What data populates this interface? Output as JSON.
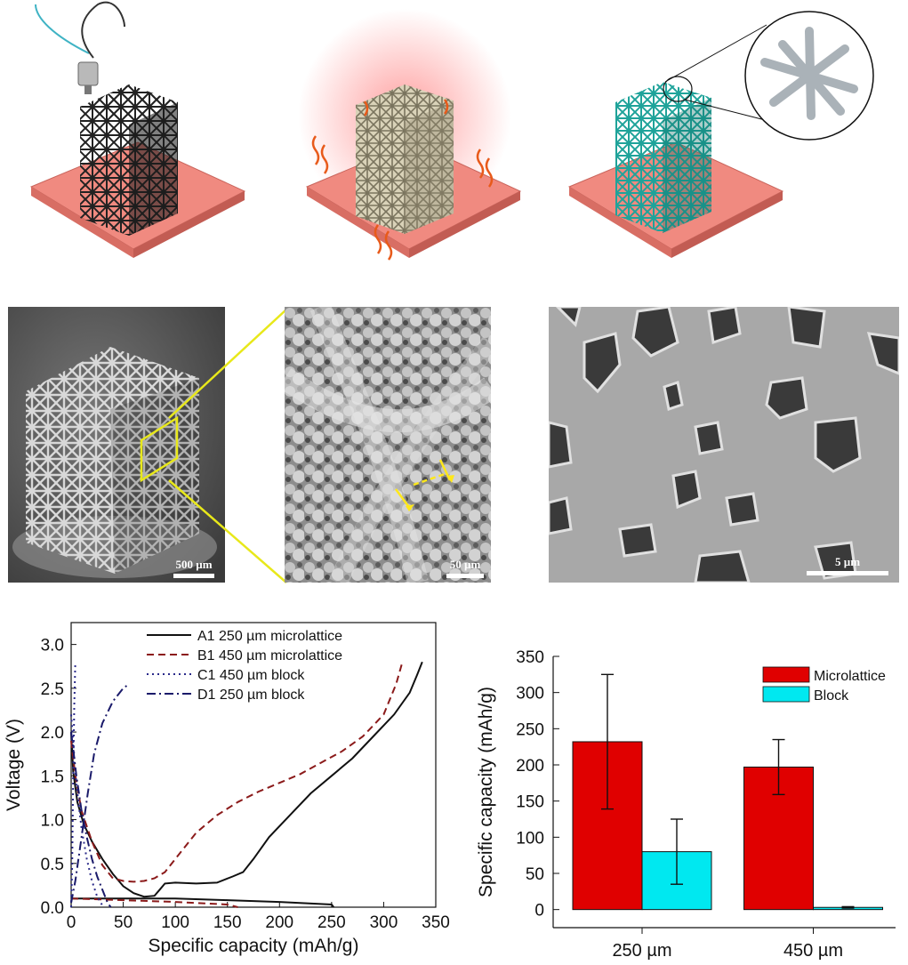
{
  "sem_images": {
    "scale_bar_1": "500 µm",
    "scale_bar_2": "50 µm",
    "scale_bar_3": "5 µm"
  },
  "illustration_colors": {
    "substrate": "#f08a80",
    "lattice_dark": "#2a2a2a",
    "lattice_beige": "#c9c2a8",
    "lattice_teal": "#1fa39a",
    "callout_strut": "#aab2b8",
    "zoom_line": "#e8e81a"
  },
  "chart_data": [
    {
      "type": "line",
      "xlabel": "Specific capacity (mAh/g)",
      "ylabel": "Voltage (V)",
      "xlim": [
        0,
        350
      ],
      "ylim": [
        0,
        3.25
      ],
      "x_ticks": [
        "0",
        "50",
        "100",
        "150",
        "200",
        "250",
        "300",
        "350"
      ],
      "y_ticks": [
        "0.0",
        "0.5",
        "1.0",
        "1.5",
        "2.0",
        "2.5",
        "3.0"
      ],
      "legend_position": "top-center",
      "series": [
        {
          "name": "A1 250 µm microlattice",
          "color": "#111111",
          "dash": "solid",
          "points": [
            [
              0,
              2.0
            ],
            [
              2,
              1.55
            ],
            [
              6,
              1.2
            ],
            [
              12,
              0.95
            ],
            [
              20,
              0.75
            ],
            [
              30,
              0.55
            ],
            [
              40,
              0.38
            ],
            [
              50,
              0.24
            ],
            [
              60,
              0.16
            ],
            [
              70,
              0.12
            ],
            [
              80,
              0.13
            ],
            [
              85,
              0.2
            ],
            [
              90,
              0.27
            ],
            [
              100,
              0.28
            ],
            [
              120,
              0.27
            ],
            [
              140,
              0.28
            ],
            [
              155,
              0.35
            ],
            [
              165,
              0.4
            ],
            [
              175,
              0.55
            ],
            [
              190,
              0.8
            ],
            [
              210,
              1.05
            ],
            [
              230,
              1.3
            ],
            [
              250,
              1.5
            ],
            [
              270,
              1.7
            ],
            [
              290,
              1.95
            ],
            [
              310,
              2.2
            ],
            [
              325,
              2.45
            ],
            [
              332,
              2.65
            ],
            [
              337,
              2.8
            ]
          ],
          "points_discharge": [
            [
              0,
              0.1
            ],
            [
              50,
              0.1
            ],
            [
              100,
              0.1
            ],
            [
              150,
              0.08
            ],
            [
              200,
              0.06
            ],
            [
              250,
              0.03
            ],
            [
              252,
              0.0
            ]
          ]
        },
        {
          "name": "B1 450 µm microlattice",
          "color": "#8b1a1a",
          "dash": "dashed",
          "points": [
            [
              0,
              1.9
            ],
            [
              4,
              1.5
            ],
            [
              10,
              1.1
            ],
            [
              20,
              0.75
            ],
            [
              30,
              0.48
            ],
            [
              40,
              0.33
            ],
            [
              50,
              0.3
            ],
            [
              60,
              0.29
            ],
            [
              70,
              0.3
            ],
            [
              80,
              0.33
            ],
            [
              90,
              0.4
            ],
            [
              100,
              0.55
            ],
            [
              120,
              0.85
            ],
            [
              140,
              1.05
            ],
            [
              160,
              1.2
            ],
            [
              180,
              1.32
            ],
            [
              200,
              1.42
            ],
            [
              220,
              1.52
            ],
            [
              240,
              1.65
            ],
            [
              260,
              1.78
            ],
            [
              280,
              1.95
            ],
            [
              300,
              2.2
            ],
            [
              312,
              2.55
            ],
            [
              318,
              2.8
            ]
          ],
          "points_discharge": [
            [
              0,
              0.1
            ],
            [
              50,
              0.08
            ],
            [
              100,
              0.06
            ],
            [
              150,
              0.03
            ],
            [
              160,
              0.0
            ]
          ]
        },
        {
          "name": "C1 450 µm block",
          "color": "#2a2a8a",
          "dash": "dotted",
          "points": [
            [
              0,
              0.0
            ],
            [
              1,
              0.5
            ],
            [
              2,
              1.5
            ],
            [
              3,
              2.3
            ],
            [
              4,
              2.8
            ]
          ],
          "points_discharge": [
            [
              0,
              2.2
            ],
            [
              5,
              1.4
            ],
            [
              10,
              0.9
            ],
            [
              15,
              0.55
            ],
            [
              20,
              0.3
            ],
            [
              25,
              0.12
            ],
            [
              30,
              0.02
            ]
          ]
        },
        {
          "name": "D1 250 µm block",
          "color": "#1a1a6a",
          "dash": "dashdot",
          "points": [
            [
              0,
              0.05
            ],
            [
              4,
              0.3
            ],
            [
              10,
              0.8
            ],
            [
              16,
              1.3
            ],
            [
              22,
              1.75
            ],
            [
              30,
              2.1
            ],
            [
              40,
              2.35
            ],
            [
              50,
              2.5
            ],
            [
              56,
              2.55
            ]
          ],
          "points_discharge": [
            [
              0,
              2.0
            ],
            [
              5,
              1.5
            ],
            [
              10,
              1.1
            ],
            [
              15,
              0.8
            ],
            [
              20,
              0.55
            ],
            [
              25,
              0.35
            ],
            [
              30,
              0.2
            ],
            [
              35,
              0.05
            ],
            [
              38,
              0.0
            ]
          ]
        }
      ]
    },
    {
      "type": "bar",
      "ylabel": "Specific capacity (mAh/g)",
      "xlabel": "",
      "ylim": [
        -25,
        350
      ],
      "y_ticks": [
        "0",
        "50",
        "100",
        "150",
        "200",
        "250",
        "300",
        "350"
      ],
      "categories": [
        "250 µm",
        "450 µm"
      ],
      "legend_position": "top-right",
      "series": [
        {
          "name": "Microlattice",
          "color": "#e00000",
          "values": [
            232,
            197
          ],
          "errors": [
            93,
            38
          ]
        },
        {
          "name": "Block",
          "color": "#00e8f0",
          "values": [
            80,
            3
          ],
          "errors": [
            45,
            1
          ]
        }
      ]
    }
  ]
}
